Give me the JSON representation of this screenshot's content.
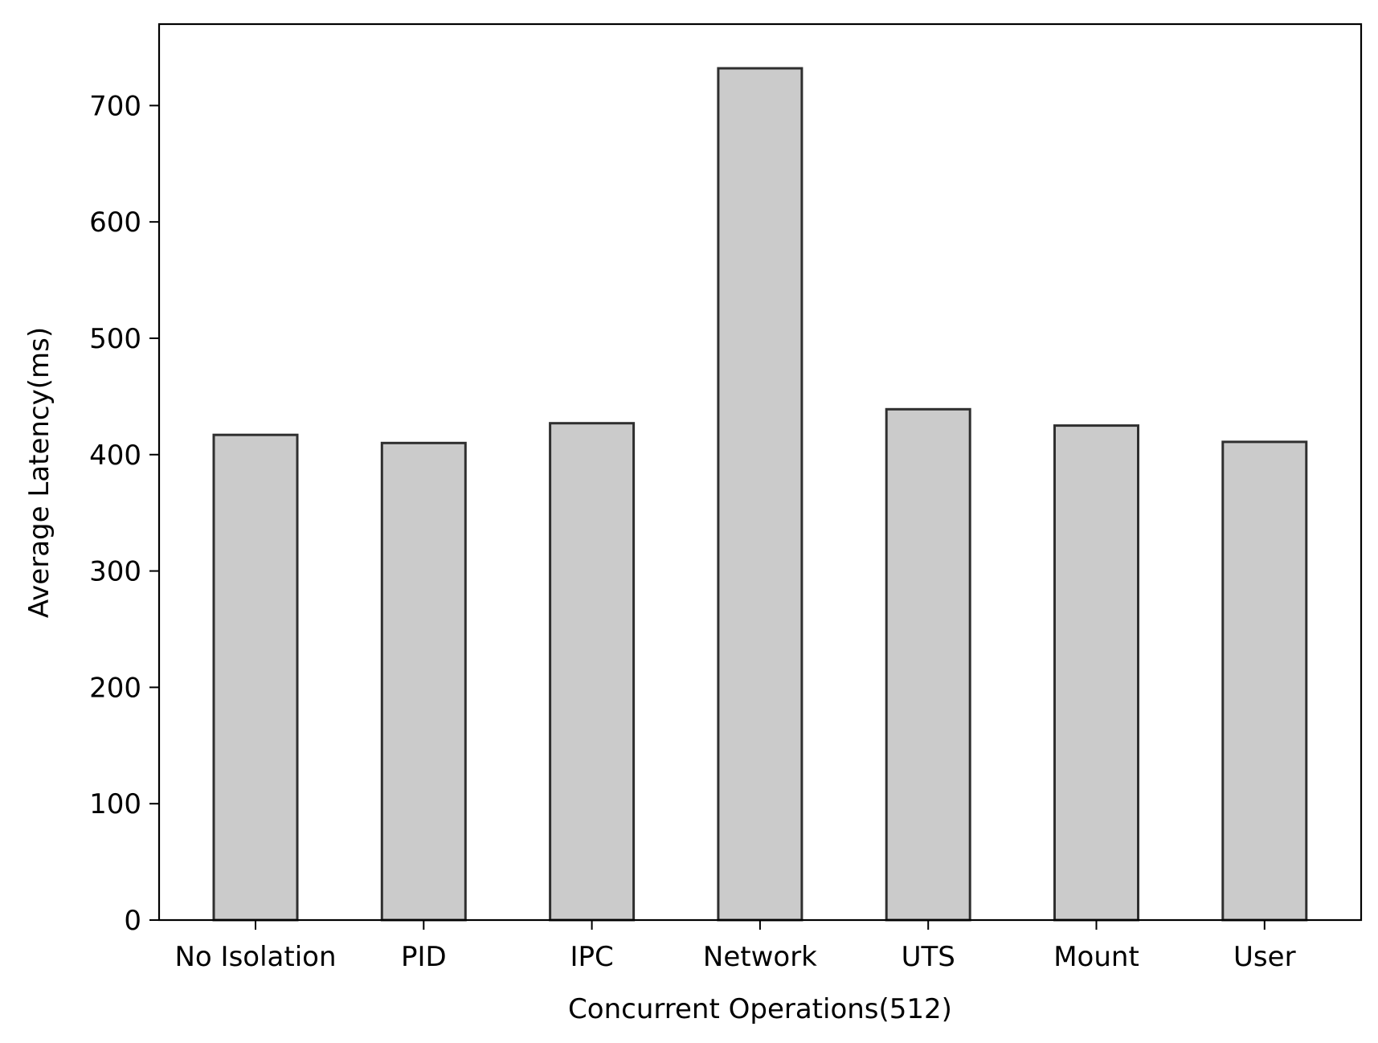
{
  "chart_data": {
    "type": "bar",
    "title": "",
    "xlabel": "Concurrent Operations(512)",
    "ylabel": "Average Latency(ms)",
    "categories": [
      "No Isolation",
      "PID",
      "IPC",
      "Network",
      "UTS",
      "Mount",
      "User"
    ],
    "values": [
      417,
      410,
      427,
      732,
      439,
      425,
      411
    ],
    "ylim": [
      0,
      770
    ],
    "yticks": [
      0,
      100,
      200,
      300,
      400,
      500,
      600,
      700
    ],
    "grid": false,
    "legend": "none",
    "colors": {
      "bar_fill": "#cbcbcb",
      "bar_edge": "#2f2f2f",
      "axis": "#000000",
      "text": "#000000"
    }
  }
}
